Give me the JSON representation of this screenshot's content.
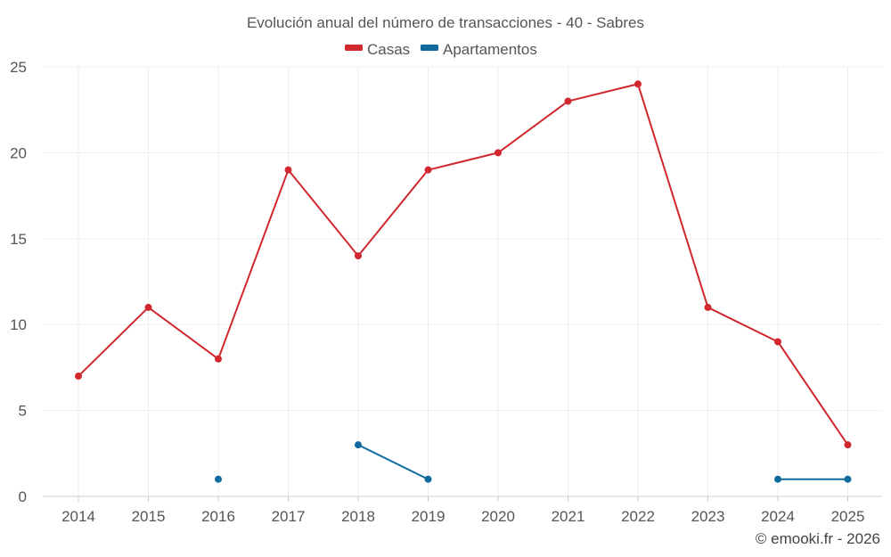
{
  "chart_data": {
    "type": "line",
    "title": "Evolución anual del número de transacciones - 40 - Sabres",
    "categories": [
      "2014",
      "2015",
      "2016",
      "2017",
      "2018",
      "2019",
      "2020",
      "2021",
      "2022",
      "2023",
      "2024",
      "2025"
    ],
    "series": [
      {
        "name": "Casas",
        "color": "#d0282e",
        "values": [
          7,
          11,
          8,
          19,
          14,
          19,
          20,
          23,
          24,
          11,
          9,
          3
        ]
      },
      {
        "name": "Apartamentos",
        "color": "#0f6a9e",
        "values": [
          null,
          null,
          1,
          null,
          3,
          1,
          null,
          null,
          null,
          null,
          1,
          1
        ]
      }
    ],
    "ylim": [
      0,
      25
    ],
    "yticks": [
      0,
      5,
      10,
      15,
      20,
      25
    ],
    "xlabel": "",
    "ylabel": "",
    "grid": true,
    "legend": "top-center"
  },
  "credit": "© emooki.fr - 2026"
}
